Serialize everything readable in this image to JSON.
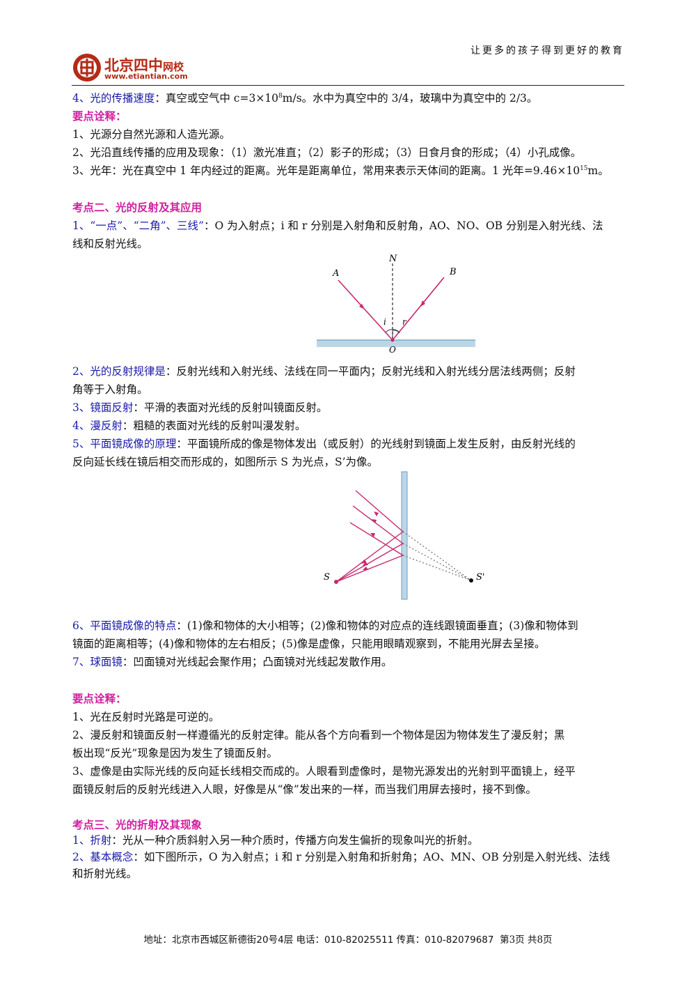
{
  "header": {
    "slogan": "让更多的孩子得到更好的教育",
    "logo_name": "北京四中",
    "logo_suffix": "网校",
    "logo_url": "www.etiantian.com"
  },
  "section1": {
    "item4_label": "4、光的传播速度",
    "item4_text_a": "：真空或空气中 c=3×10",
    "item4_sup": "8",
    "item4_text_b": "m/s。水中为真空中的 3/4，玻璃中为真空中的 2/3。",
    "notes_title": "要点诠释：",
    "note1": "1、光源分自然光源和人造光源。",
    "note2": "2、光沿直线传播的应用及现象：（1）激光准直；（2）影子的形成；（3）日食月食的形成；（4）小孔成像。",
    "note3_a": "3、光年：光在真空中 1 年内经过的距离。光年是距离单位，常用来表示天体间的距离。1 光年=9.46×10",
    "note3_sup": "15",
    "note3_b": "m。"
  },
  "section2": {
    "title": "考点二、光的反射及其应用",
    "item1_label": "1、“一点”、“二角”、三线”",
    "item1_text": "：O 为入射点；i 和 r 分别是入射角和反射角，AO、NO、OB 分别是入射光线、法",
    "item1_text2": "线和反射光线。",
    "fig1_labels": {
      "N": "N",
      "A": "A",
      "B": "B",
      "i": "i",
      "r": "r",
      "O": "O"
    },
    "item2_label": "2、光的反射规律是",
    "item2_text": "：反射光线和入射光线、法线在同一平面内；反射光线和入射光线分居法线两侧；反射",
    "item2_text2": "角等于入射角。",
    "item3_label": "3、镜面反射",
    "item3_text": "：平滑的表面对光线的反射叫镜面反射。",
    "item4_label": "4、漫反射",
    "item4_text": "：粗糙的表面对光线的反射叫漫发射。",
    "item5_label": "5、平面镜成像的原理",
    "item5_text": "：平面镜所成的像是物体发出（或反射）的光线射到镜面上发生反射，由反射光线的",
    "item5_text2": "反向延长线在镜后相交而形成的，如图所示 S 为光点，S’为像。",
    "fig2_labels": {
      "S": "S",
      "S_prime": "S'"
    },
    "item6_label": "6、平面镜成像的特点",
    "item6_text": "：(1)像和物体的大小相等；(2)像和物体的对应点的连线跟镜面垂直；(3)像和物体到",
    "item6_text2": "镜面的距离相等；(4)像和物体的左右相反；(5)像是虚像，只能用眼睛观察到，不能用光屏去呈接。",
    "item7_label": "7、球面镜",
    "item7_text": "：凹面镜对光线起会聚作用；凸面镜对光线起发散作用。",
    "notes_title": "要点诠释：",
    "note1": "1、光在反射时光路是可逆的。",
    "note2": "2、漫反射和镜面反射一样遵循光的反射定律。能从各个方向看到一个物体是因为物体发生了漫反射；黑",
    "note2b": "板出现“反光”现象是因为发生了镜面反射。",
    "note3": "3、虚像是由实际光线的反向延长线相交而成的。人眼看到虚像时，是物光源发出的光射到平面镜上，经平",
    "note3b": "面镜反射后的反射光线进入人眼，好像是从“像”发出来的一样，而当我们用屏去接时，接不到像。"
  },
  "section3": {
    "title": "考点三、光的折射及其现象",
    "item1_label": "1、折射",
    "item1_text": "：光从一种介质斜射入另一种介质时，传播方向发生偏折的现象叫光的折射。",
    "item2_label": "2、基本概念",
    "item2_text": "：如下图所示，O 为入射点；i 和 r 分别是入射角和折射角；AO、MN、OB 分别是入射光线、法线",
    "item2_text2": "和折射光线。"
  },
  "footer": {
    "address": "地址：北京市西城区新德街20号4层 电话：010-82025511 传真：010-82079687",
    "page": "第3页  共8页"
  },
  "colors": {
    "heading_magenta": "#d020a0",
    "label_blue": "#1a1aa8",
    "ray": "#c8286e",
    "mirror": "#bcd6e6",
    "logo_red": "#b52a17"
  }
}
